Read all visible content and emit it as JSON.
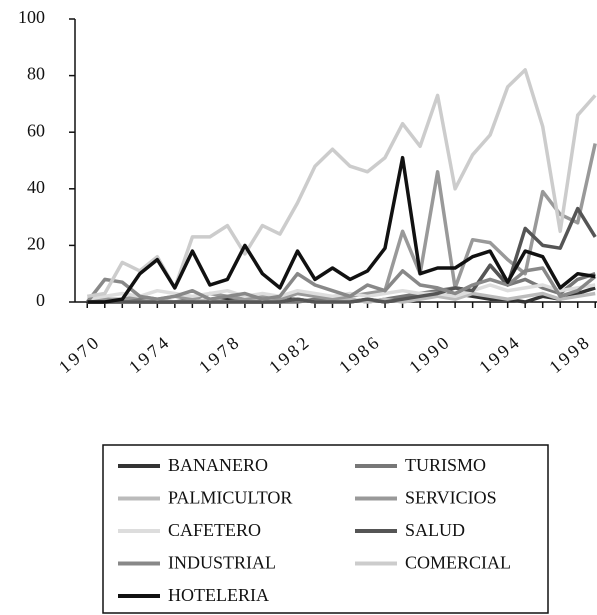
{
  "chart_data": {
    "type": "line",
    "x": [
      1970,
      1971,
      1972,
      1973,
      1974,
      1975,
      1976,
      1977,
      1978,
      1979,
      1980,
      1981,
      1982,
      1983,
      1984,
      1985,
      1986,
      1987,
      1988,
      1989,
      1990,
      1991,
      1992,
      1993,
      1994,
      1995,
      1996,
      1997,
      1998,
      1999
    ],
    "xlim": [
      1969.3,
      1999.1
    ],
    "xticks": [
      1970,
      1974,
      1978,
      1982,
      1986,
      1990,
      1994,
      1998
    ],
    "ylim": [
      0,
      100
    ],
    "yticks": [
      0,
      20,
      40,
      60,
      80,
      100
    ],
    "series": [
      {
        "name": "BANANERO",
        "color": "#333333",
        "values": [
          0,
          0,
          1,
          0,
          0,
          0,
          0,
          0,
          1,
          0,
          0,
          1,
          1,
          0,
          1,
          0,
          1,
          0,
          1,
          2,
          2,
          3,
          2,
          1,
          1,
          0,
          2,
          1,
          3,
          5
        ]
      },
      {
        "name": "TURISMO",
        "color": "#777777",
        "values": [
          0,
          0,
          0,
          1,
          0,
          0,
          1,
          0,
          0,
          1,
          0,
          0,
          0,
          1,
          0,
          1,
          0,
          1,
          2,
          3,
          4,
          5,
          4,
          13,
          6,
          8,
          5,
          3,
          8,
          10
        ]
      },
      {
        "name": "PALMICULTOR",
        "color": "#bbbbbb",
        "values": [
          0,
          0,
          0,
          0,
          1,
          0,
          0,
          1,
          0,
          0,
          1,
          0,
          1,
          0,
          0,
          1,
          0,
          1,
          0,
          1,
          2,
          1,
          3,
          2,
          1,
          2,
          3,
          1,
          2,
          3
        ]
      },
      {
        "name": "SERVICIOS",
        "color": "#999999",
        "values": [
          0,
          1,
          1,
          2,
          1,
          2,
          1,
          3,
          2,
          1,
          2,
          1,
          3,
          2,
          1,
          2,
          3,
          4,
          25,
          10,
          46,
          5,
          22,
          21,
          15,
          10,
          39,
          31,
          28,
          56
        ]
      },
      {
        "name": "CAFETERO",
        "color": "#dddddd",
        "values": [
          1,
          2,
          3,
          2,
          4,
          3,
          2,
          3,
          4,
          2,
          3,
          2,
          4,
          3,
          2,
          3,
          2,
          3,
          4,
          3,
          3,
          2,
          4,
          6,
          4,
          5,
          6,
          4,
          5,
          6
        ]
      },
      {
        "name": "SALUD",
        "color": "#555555",
        "values": [
          0,
          0,
          0,
          0,
          0,
          0,
          0,
          0,
          0,
          0,
          0,
          0,
          1,
          0,
          0,
          0,
          1,
          0,
          1,
          2,
          3,
          5,
          4,
          13,
          6,
          26,
          20,
          19,
          33,
          23
        ]
      },
      {
        "name": "INDUSTRIAL",
        "color": "#888888",
        "values": [
          0,
          8,
          7,
          2,
          1,
          2,
          4,
          1,
          2,
          3,
          1,
          2,
          10,
          6,
          4,
          2,
          6,
          4,
          11,
          6,
          5,
          3,
          6,
          8,
          6,
          11,
          12,
          2,
          4,
          9
        ]
      },
      {
        "name": "COMERCIAL",
        "color": "#cccccc",
        "values": [
          2,
          3,
          14,
          11,
          16,
          5,
          23,
          23,
          27,
          17,
          27,
          24,
          35,
          48,
          54,
          48,
          46,
          51,
          63,
          55,
          73,
          40,
          52,
          59,
          76,
          82,
          62,
          25,
          66,
          73
        ]
      },
      {
        "name": "HOTELERIA",
        "color": "#111111",
        "values": [
          0,
          0,
          1,
          10,
          15,
          5,
          18,
          6,
          8,
          20,
          10,
          5,
          18,
          8,
          12,
          8,
          11,
          19,
          51,
          10,
          12,
          12,
          16,
          18,
          7,
          18,
          16,
          5,
          10,
          9
        ]
      }
    ]
  }
}
